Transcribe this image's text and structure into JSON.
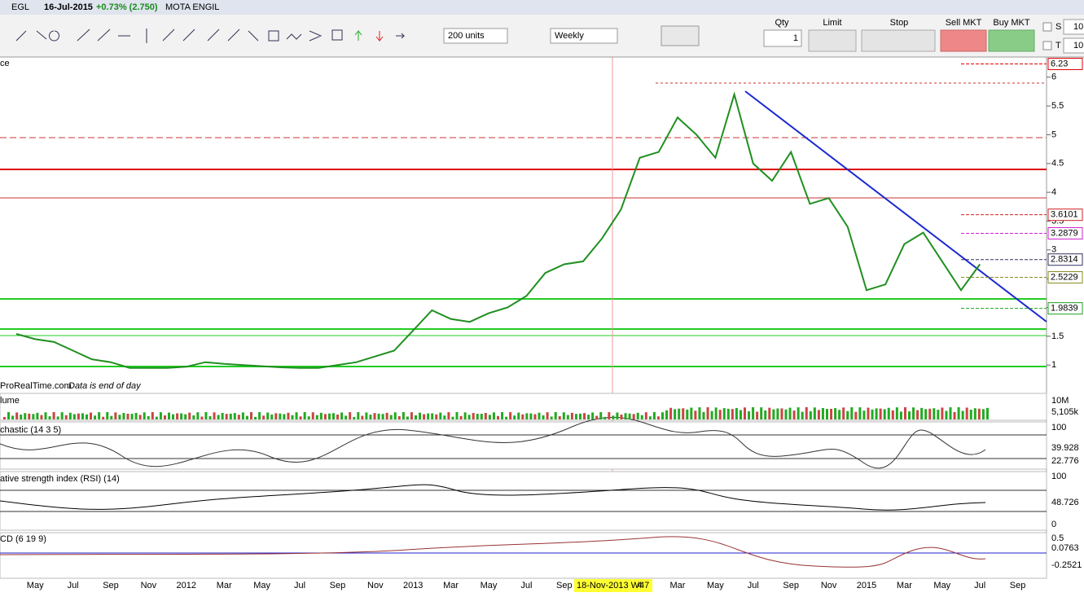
{
  "title_bar": {
    "symbol": "EGL",
    "date": "16-Jul-2015",
    "change": "+0.73% (2.750)",
    "name": "MOTA ENGIL"
  },
  "toolbar": {
    "units": "200 units",
    "period": "Weekly",
    "qty_label": "Qty",
    "qty": "1",
    "limit": "Limit",
    "stop": "Stop",
    "sell": "Sell MKT",
    "buy": "Buy MKT",
    "s": "S",
    "t": "T",
    "s_value": "10",
    "t_value": "10"
  },
  "chart_data": {
    "type": "line",
    "panel_label": "ce",
    "footer": "ProRealTime.com",
    "footer_note": "Data is end of day",
    "cursor_label": "18-Nov-2013 W47",
    "categories": [
      null,
      "May",
      null,
      "Jul",
      null,
      "Sep",
      null,
      "Nov",
      null,
      "2012",
      null,
      "Mar",
      null,
      "May",
      null,
      "Jul",
      null,
      "Sep",
      null,
      "Nov",
      null,
      "2013",
      null,
      "Mar",
      null,
      "May",
      null,
      "Jul",
      null,
      "Sep",
      null,
      null,
      null,
      "4",
      null,
      "Mar",
      null,
      "May",
      null,
      "Jul",
      null,
      "Sep",
      null,
      "Nov",
      null,
      "2015",
      null,
      "Mar",
      null,
      "May",
      null,
      "Jul",
      null,
      "Sep"
    ],
    "values": [
      1.54,
      1.45,
      1.4,
      1.25,
      1.1,
      1.05,
      0.95,
      0.95,
      0.95,
      0.97,
      1.05,
      1.02,
      1.0,
      0.98,
      0.96,
      0.95,
      0.95,
      1.0,
      1.05,
      1.15,
      1.25,
      1.6,
      1.95,
      1.8,
      1.75,
      1.9,
      2.0,
      2.2,
      2.6,
      2.75,
      2.8,
      3.2,
      3.7,
      4.6,
      4.7,
      5.3,
      5.0,
      4.6,
      5.7,
      4.5,
      4.2,
      4.7,
      3.8,
      3.9,
      3.4,
      2.3,
      2.4,
      3.1,
      3.3,
      2.8,
      2.3,
      2.75,
      null,
      null
    ],
    "color": "#1f8f1f",
    "ylim": [
      0.55,
      6.35
    ],
    "yticks": [
      1,
      1.5,
      2,
      2.5,
      3,
      3.5,
      4,
      4.5,
      5,
      5.5,
      6
    ],
    "levels": [
      {
        "value": 6.23,
        "color": "#e00000"
      },
      {
        "value": 3.6101,
        "color": "#d02020"
      },
      {
        "value": 3.2879,
        "color": "#d020d0"
      },
      {
        "value": 2.8314,
        "color": "#303060"
      },
      {
        "value": 2.5229,
        "color": "#8a8a20"
      },
      {
        "value": 1.9839,
        "color": "#20a020"
      }
    ]
  },
  "panels": {
    "volume": {
      "label": "lume",
      "top": "10M",
      "last": "5,105k"
    },
    "stochastic": {
      "label": "chastic (14 3 5)",
      "top": "100",
      "k": "39.928",
      "d": "22.776"
    },
    "rsi": {
      "label": "ative strength index (RSI) (14)",
      "top": "100",
      "last": "48.726",
      "bottom": "0"
    },
    "macd": {
      "label": "CD (6 19 9)",
      "top": "0.5",
      "hist": "0.0763",
      "signal": "-0.2521"
    }
  }
}
